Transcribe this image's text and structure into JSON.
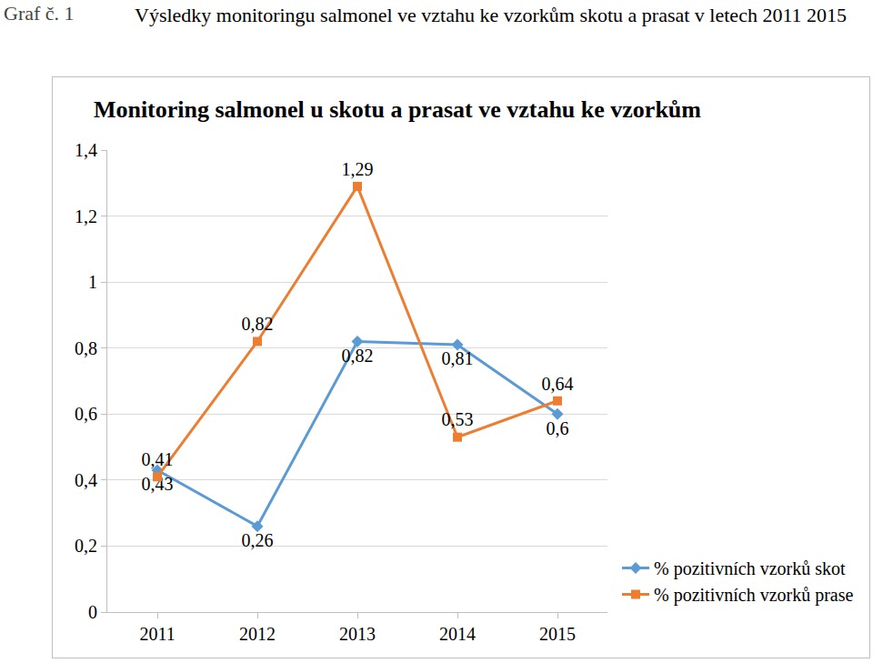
{
  "figure_label": "Graf č. 1",
  "caption": "Výsledky monitoringu salmonel ve vztahu ke vzorkům skotu a prasat v letech 2011 2015",
  "chart_data": {
    "type": "line",
    "title": "Monitoring salmonel u skotu a prasat ve vztahu ke vzorkům",
    "categories": [
      "2011",
      "2012",
      "2013",
      "2014",
      "2015"
    ],
    "series": [
      {
        "name": "% pozitivních vzorků skot",
        "color": "#5b9bd5",
        "marker": "diamond",
        "values": [
          0.43,
          0.26,
          0.82,
          0.81,
          0.6
        ],
        "value_labels": [
          "0,43",
          "0,26",
          "0,82",
          "0,81",
          "0,6"
        ]
      },
      {
        "name": "% pozitivních vzorků prase",
        "color": "#ed7d31",
        "marker": "square",
        "values": [
          0.41,
          0.82,
          1.29,
          0.53,
          0.64
        ],
        "value_labels": [
          "0,41",
          "0,82",
          "1,29",
          "0,53",
          "0,64"
        ]
      }
    ],
    "ylim": [
      0,
      1.4
    ],
    "yticks": [
      0,
      {
        "value": 0.2,
        "label": "0,2"
      },
      {
        "value": 0.4,
        "label": "0,4"
      },
      {
        "value": 0.6,
        "label": "0,6"
      },
      {
        "value": 0.8,
        "label": "0,8"
      },
      1,
      {
        "value": 1.2,
        "label": "1,2"
      },
      {
        "value": 1.4,
        "label": "1,4"
      }
    ],
    "grid": true,
    "data_labels": true,
    "legend": "bottom right"
  }
}
